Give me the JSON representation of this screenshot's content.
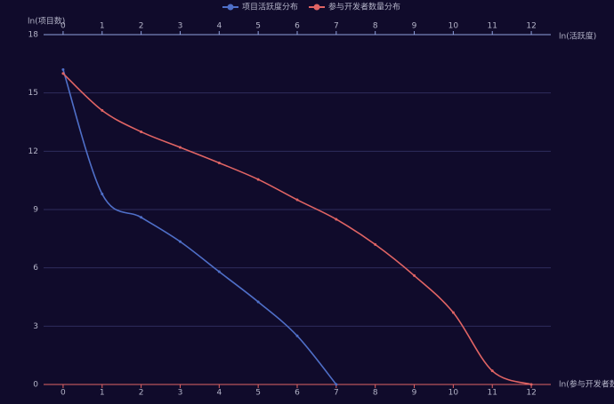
{
  "chart_data": {
    "type": "line",
    "ylabel": "ln(项目数)",
    "xlabel": "ln(参与开发者数)",
    "x2label": "ln(活跃度)",
    "xlim": [
      -0.5,
      12.5
    ],
    "xticks": [
      0,
      1,
      2,
      3,
      4,
      5,
      6,
      7,
      8,
      9,
      10,
      11,
      12
    ],
    "x2lim": [
      -0.5,
      12.5
    ],
    "x2ticks": [
      0,
      1,
      2,
      3,
      4,
      5,
      6,
      7,
      8,
      9,
      10,
      11,
      12
    ],
    "ylim": [
      0,
      18
    ],
    "yticks": [
      0,
      3,
      6,
      9,
      12,
      15,
      18
    ],
    "grid": true,
    "legend": "top",
    "series": [
      {
        "name": "项目活跃度分布",
        "color": "#4f6fc8",
        "axis": "x2",
        "x": [
          0,
          1,
          2,
          3,
          4,
          5,
          6,
          7
        ],
        "values": [
          16.2,
          9.8,
          8.6,
          7.35,
          5.8,
          4.25,
          2.5,
          0
        ]
      },
      {
        "name": "参与开发者数量分布",
        "color": "#e06464",
        "x": [
          0,
          1,
          2,
          3,
          4,
          5,
          6,
          7,
          8,
          9,
          10,
          11,
          12
        ],
        "values": [
          16.0,
          14.1,
          13.0,
          12.2,
          11.4,
          10.55,
          9.5,
          8.5,
          7.2,
          5.6,
          3.7,
          0.7,
          0
        ]
      }
    ]
  }
}
